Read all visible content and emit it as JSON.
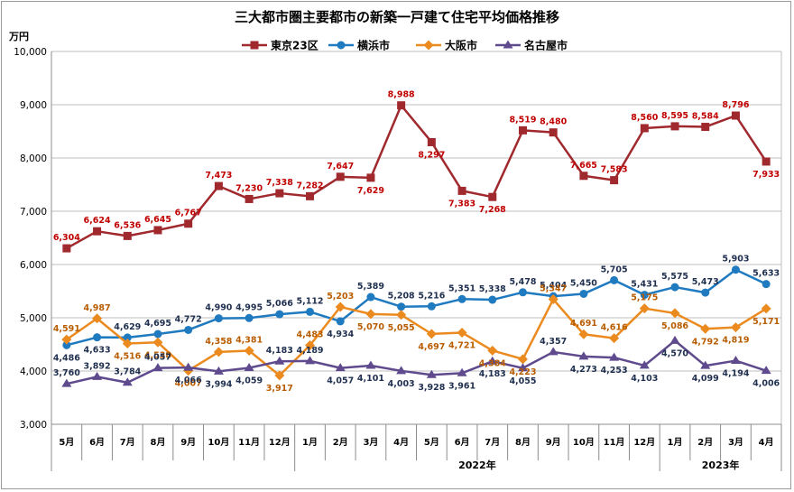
{
  "chart_data": {
    "type": "line",
    "title": "三大都市圏主要都市の新築一戸建て住宅平均価格推移",
    "ylabel": "万円",
    "ylim": [
      3000,
      10000
    ],
    "yticks": [
      "3,000",
      "4,000",
      "5,000",
      "6,000",
      "7,000",
      "8,000",
      "9,000",
      "10,000"
    ],
    "categories": [
      "5月",
      "6月",
      "7月",
      "8月",
      "9月",
      "10月",
      "11月",
      "12月",
      "1月",
      "2月",
      "3月",
      "4月",
      "5月",
      "6月",
      "7月",
      "8月",
      "9月",
      "10月",
      "11月",
      "12月",
      "1月",
      "2月",
      "3月",
      "4月"
    ],
    "year_groups": [
      {
        "label": "",
        "start": 0,
        "end": 8
      },
      {
        "label": "2022年",
        "start": 8,
        "end": 20
      },
      {
        "label": "2023年",
        "start": 20,
        "end": 24
      }
    ],
    "legend_position": "top",
    "grid": "horizontal",
    "series": [
      {
        "name": "東京23区",
        "color": "#A0292E",
        "marker": "square",
        "values": [
          6304,
          6624,
          6536,
          6645,
          6767,
          7473,
          7230,
          7338,
          7282,
          7647,
          7629,
          8988,
          8297,
          7383,
          7268,
          8519,
          8480,
          7665,
          7583,
          8560,
          8595,
          8584,
          8796,
          7933
        ],
        "labels": [
          "6,304",
          "6,624",
          "6,536",
          "6,645",
          "6,767",
          "7,473",
          "7,230",
          "7,338",
          "7,282",
          "7,647",
          "7,629",
          "8,988",
          "8,297",
          "7,383",
          "7,268",
          "8,519",
          "8,480",
          "7,665",
          "7,583",
          "8,560",
          "8,595",
          "8,584",
          "8,796",
          "7,933"
        ]
      },
      {
        "name": "横浜市",
        "color": "#1F7AC0",
        "marker": "circle",
        "values": [
          4486,
          4633,
          4629,
          4695,
          4772,
          4990,
          4995,
          5066,
          5112,
          4934,
          5389,
          5208,
          5216,
          5351,
          5338,
          5478,
          5404,
          5450,
          5705,
          5431,
          5575,
          5473,
          5903,
          5633
        ],
        "labels": [
          "4,486",
          "4,633",
          "4,629",
          "4,695",
          "4,772",
          "4,990",
          "4,995",
          "5,066",
          "5,112",
          "4,934",
          "5,389",
          "5,208",
          "5,216",
          "5,351",
          "5,338",
          "5,478",
          "5,404",
          "5,450",
          "5,705",
          "5,431",
          "5,575",
          "5,473",
          "5,903",
          "5,633"
        ]
      },
      {
        "name": "大阪市",
        "color": "#EB8A1E",
        "marker": "diamond",
        "values": [
          4591,
          4987,
          4516,
          4538,
          4007,
          4358,
          4381,
          3917,
          4483,
          5203,
          5070,
          5055,
          4697,
          4721,
          4384,
          4223,
          5347,
          4691,
          4616,
          5175,
          5086,
          4792,
          4819,
          5171
        ],
        "labels": [
          "4,591",
          "4,987",
          "4,516",
          "4,538",
          "4,007",
          "4,358",
          "4,381",
          "3,917",
          "4,483",
          "5,203",
          "5,070",
          "5,055",
          "4,697",
          "4,721",
          "4,384",
          "4,223",
          "5,347",
          "4,691",
          "4,616",
          "5,175",
          "5,086",
          "4,792",
          "4,819",
          "5,171"
        ]
      },
      {
        "name": "名古屋市",
        "color": "#5E4A8C",
        "marker": "triangle",
        "values": [
          3760,
          3892,
          3784,
          4057,
          4066,
          3994,
          4059,
          4183,
          4189,
          4057,
          4101,
          4003,
          3928,
          3961,
          4183,
          4055,
          4357,
          4273,
          4253,
          4103,
          4570,
          4099,
          4194,
          4006
        ],
        "labels": [
          "3,760",
          "3,892",
          "3,784",
          "4,057",
          "4,066",
          "3,994",
          "4,059",
          "4,183",
          "4,189",
          "4,057",
          "4,101",
          "4,003",
          "3,928",
          "3,961",
          "4,183",
          "4,055",
          "4,357",
          "4,273",
          "4,253",
          "4,103",
          "4,570",
          "4,099",
          "4,194",
          "4,006"
        ]
      }
    ]
  }
}
